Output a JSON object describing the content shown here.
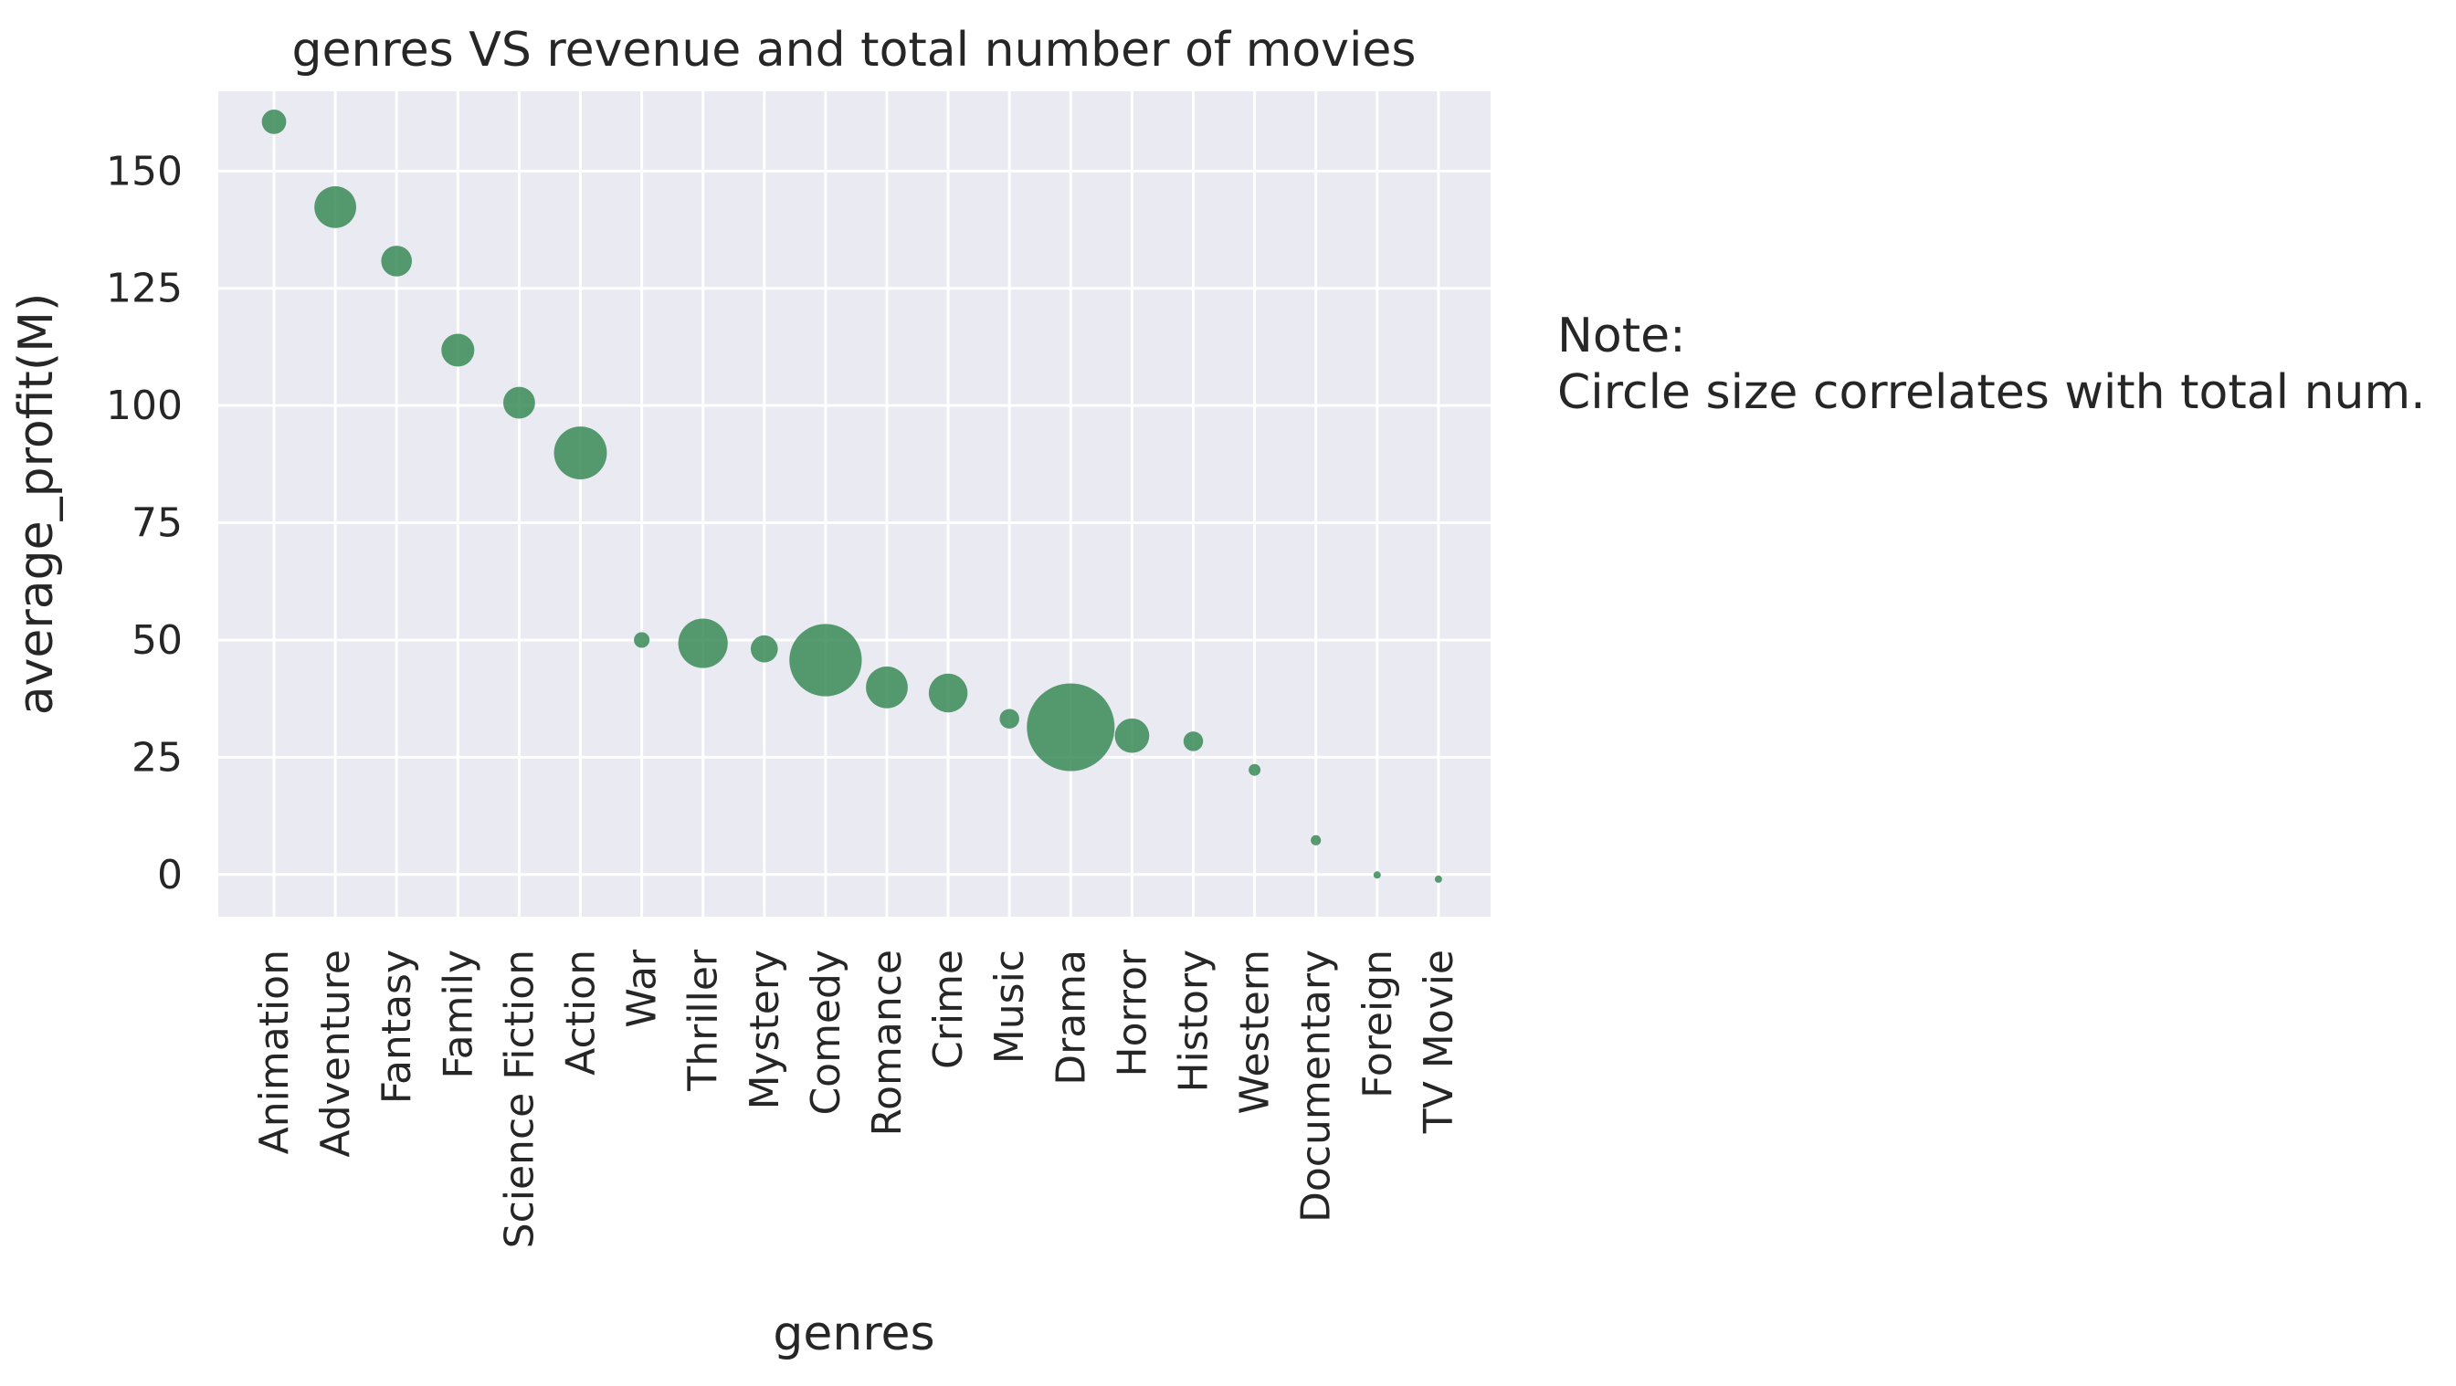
{
  "chart_data": {
    "type": "scatter",
    "title": "genres VS revenue and total number of movies",
    "xlabel": "genres",
    "ylabel": "average_profit(M)",
    "ylim": [
      -9,
      167
    ],
    "yticks": [
      0,
      25,
      50,
      75,
      100,
      125,
      150
    ],
    "grid": true,
    "color": "#3a8a57",
    "background": "#eaeaf2",
    "categories": [
      "Animation",
      "Adventure",
      "Fantasy",
      "Family",
      "Science Fiction",
      "Action",
      "War",
      "Thriller",
      "Mystery",
      "Comedy",
      "Romance",
      "Crime",
      "Music",
      "Drama",
      "Horror",
      "History",
      "Western",
      "Documentary",
      "Foreign",
      "TV Movie"
    ],
    "values": [
      160.5,
      142.3,
      130.8,
      111.8,
      100.6,
      89.9,
      50.0,
      49.3,
      48.1,
      45.7,
      39.9,
      38.7,
      33.2,
      31.4,
      29.6,
      28.4,
      22.3,
      7.3,
      -0.1,
      -1.0
    ],
    "sizes": [
      17,
      50,
      27,
      31,
      29,
      80,
      7,
      70,
      21,
      150,
      50,
      43,
      11,
      220,
      34,
      11,
      4,
      3,
      1,
      0.4
    ],
    "annotation": {
      "line1": "Note:",
      "line2": "Circle size correlates with total num."
    }
  }
}
